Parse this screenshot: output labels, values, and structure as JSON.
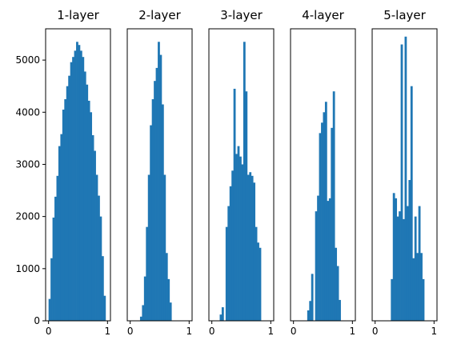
{
  "chart_data": {
    "type": "bar",
    "color": "#1f77b4",
    "shared_y": true,
    "ylim": [
      0,
      5600
    ],
    "yticks": [
      0,
      1000,
      2000,
      3000,
      4000,
      5000
    ],
    "xlim": [
      -0.05,
      1.05
    ],
    "xticks": [
      0,
      1
    ],
    "bin_count": 30,
    "bin_range": [
      0,
      1
    ],
    "panels": [
      {
        "title": "1-layer",
        "counts": [
          420,
          1200,
          1980,
          2380,
          2780,
          3350,
          3580,
          4050,
          4250,
          4500,
          4700,
          4960,
          5060,
          5180,
          5350,
          5290,
          5180,
          5060,
          4780,
          4530,
          4220,
          4000,
          3560,
          3260,
          2800,
          2400,
          2000,
          1240,
          480,
          0
        ]
      },
      {
        "title": "2-layer",
        "counts": [
          0,
          0,
          0,
          0,
          0,
          80,
          300,
          850,
          1800,
          2800,
          3750,
          4250,
          4600,
          4850,
          5350,
          5100,
          4150,
          2800,
          1300,
          800,
          350,
          0,
          0,
          0,
          0,
          0,
          0,
          0,
          0,
          0
        ]
      },
      {
        "title": "3-layer",
        "counts": [
          0,
          0,
          0,
          0,
          120,
          260,
          0,
          1800,
          2200,
          2580,
          2880,
          4450,
          3200,
          3350,
          3150,
          3000,
          5350,
          4400,
          2800,
          2850,
          2780,
          2650,
          1800,
          1500,
          1400,
          0,
          0,
          0,
          0,
          0
        ]
      },
      {
        "title": "4-layer",
        "counts": [
          0,
          0,
          0,
          0,
          0,
          0,
          0,
          200,
          380,
          900,
          0,
          2100,
          2400,
          3600,
          3800,
          4000,
          4200,
          2300,
          2350,
          3700,
          4400,
          1400,
          1050,
          400,
          0,
          0,
          0,
          0,
          0,
          0
        ]
      },
      {
        "title": "5-layer",
        "counts": [
          0,
          0,
          0,
          0,
          0,
          0,
          0,
          0,
          800,
          2450,
          2350,
          2000,
          2100,
          5300,
          1950,
          5450,
          2200,
          2700,
          4500,
          1200,
          2000,
          1300,
          2200,
          1300,
          800,
          0,
          0,
          0,
          0,
          0
        ]
      }
    ]
  }
}
